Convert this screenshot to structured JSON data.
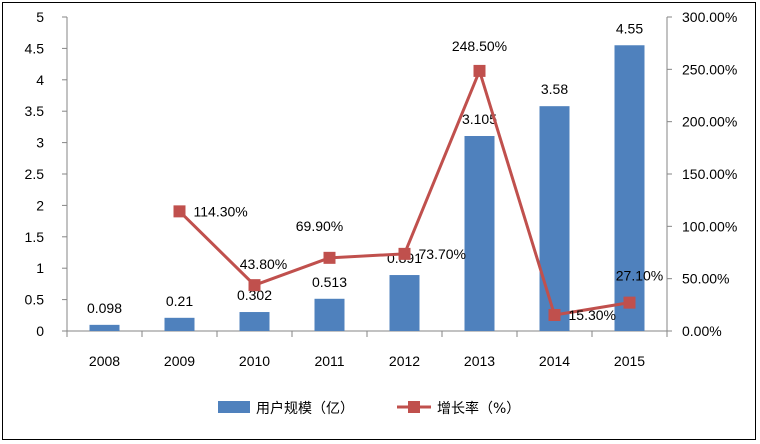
{
  "chart_data": {
    "type": "bar",
    "categories": [
      "2008",
      "2009",
      "2010",
      "2011",
      "2012",
      "2013",
      "2014",
      "2015"
    ],
    "series": [
      {
        "name": "用户规模（亿）",
        "type": "bar",
        "axis": "left",
        "color": "#4F81BD",
        "values": [
          0.098,
          0.21,
          0.302,
          0.513,
          0.891,
          3.105,
          3.58,
          4.55
        ],
        "labels": [
          "0.098",
          "0.21",
          "0.302",
          "0.513",
          "0.891",
          "3.105",
          "3.58",
          "4.55"
        ]
      },
      {
        "name": "增长率（%）",
        "type": "line",
        "axis": "right",
        "color": "#C0504D",
        "values": [
          null,
          114.3,
          43.8,
          69.9,
          73.7,
          248.5,
          15.3,
          27.1
        ],
        "labels": [
          "",
          "114.30%",
          "43.80%",
          "69.90%",
          "73.70%",
          "248.50%",
          "15.30%",
          "27.10%"
        ]
      }
    ],
    "y_left": {
      "range": [
        0,
        5
      ],
      "ticks": [
        "0",
        "0.5",
        "1",
        "1.5",
        "2",
        "2.5",
        "3",
        "3.5",
        "4",
        "4.5",
        "5"
      ]
    },
    "y_right": {
      "range": [
        0,
        300
      ],
      "ticks": [
        "0.00%",
        "50.00%",
        "100.00%",
        "150.00%",
        "200.00%",
        "250.00%",
        "300.00%"
      ]
    },
    "grid": false,
    "legend_position": "bottom"
  }
}
